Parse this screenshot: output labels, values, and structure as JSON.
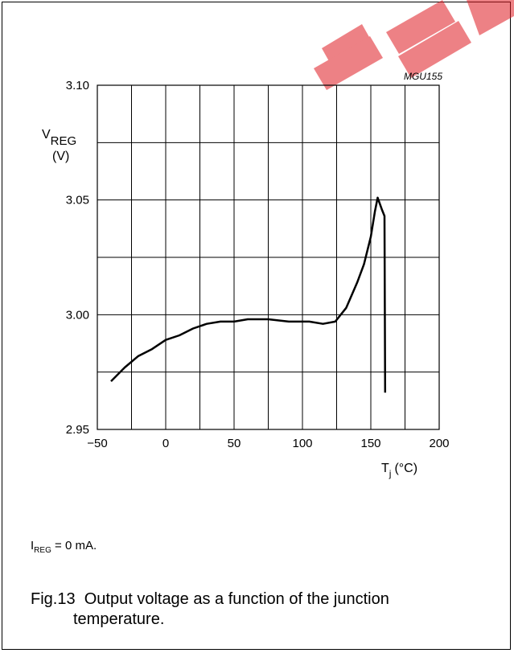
{
  "chart_data": {
    "type": "line",
    "code": "MGU155",
    "ylabel_main": "V",
    "ylabel_sub": "REG",
    "ylabel_unit": "(V)",
    "xlabel_main": "T",
    "xlabel_sub": "j",
    "xlabel_unit": "(°C)",
    "xlim": [
      -50,
      200
    ],
    "ylim": [
      2.95,
      3.1
    ],
    "x_ticks": [
      -50,
      0,
      50,
      100,
      150,
      200
    ],
    "x_tick_labels": [
      "−50",
      "0",
      "50",
      "100",
      "150",
      "200"
    ],
    "y_ticks": [
      2.95,
      3.0,
      3.05,
      3.1
    ],
    "y_tick_labels": [
      "2.95",
      "3.00",
      "3.05",
      "3.10"
    ],
    "grid": true,
    "series": [
      {
        "x": [
          -40,
          -30,
          -20,
          -10,
          0,
          10,
          20,
          30,
          40,
          50,
          60,
          75,
          90,
          105,
          115,
          124,
          132,
          140,
          145,
          150,
          153,
          155,
          158,
          160,
          160.5
        ],
        "y": [
          2.971,
          2.977,
          2.982,
          2.985,
          2.989,
          2.991,
          2.994,
          2.996,
          2.997,
          2.997,
          2.998,
          2.998,
          2.997,
          2.997,
          2.996,
          2.997,
          3.003,
          3.014,
          3.022,
          3.034,
          3.045,
          3.051,
          3.046,
          3.043,
          2.966
        ]
      }
    ]
  },
  "note": {
    "main": "I",
    "sub": "REG",
    "rest": " = 0 mA."
  },
  "caption": {
    "label": "Fig.13",
    "text_line1": "Output voltage as a function of the junction",
    "text_line2": "temperature."
  }
}
